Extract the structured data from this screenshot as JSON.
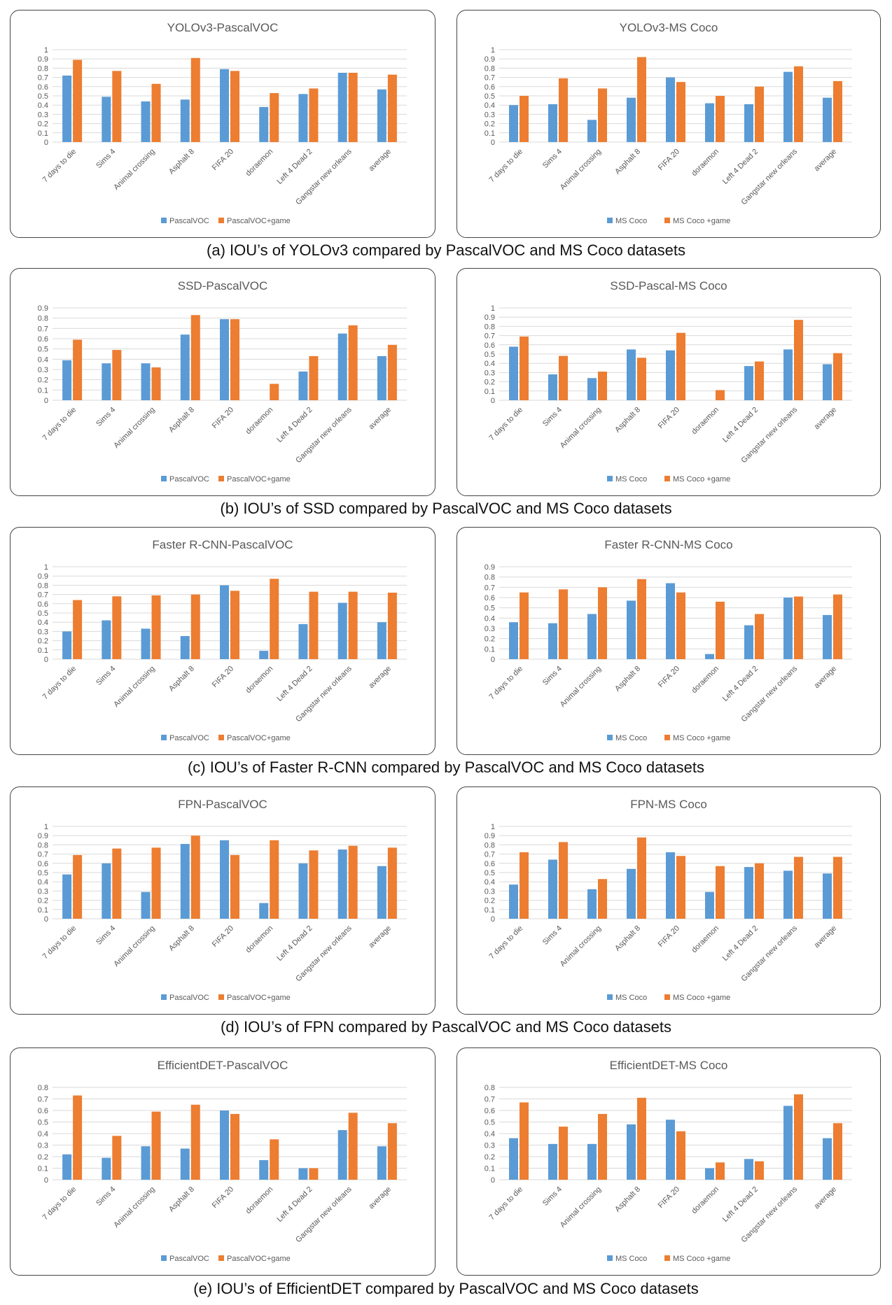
{
  "chart_data": [
    {
      "type": "bar",
      "title": "YOLOv3-PascalVOC",
      "categories": [
        "7 days to die",
        "Sims 4",
        "Animal crossing",
        "Asphalt 8",
        "FIFA 20",
        "doraemon",
        "Left 4 Dead 2",
        "Gangstar new orleans",
        "average"
      ],
      "series": [
        {
          "name": "PascalVOC",
          "values": [
            0.72,
            0.49,
            0.44,
            0.46,
            0.79,
            0.38,
            0.52,
            0.75,
            0.57
          ]
        },
        {
          "name": "PascalVOC+game",
          "values": [
            0.89,
            0.77,
            0.63,
            0.91,
            0.77,
            0.53,
            0.58,
            0.75,
            0.73
          ]
        }
      ],
      "ylim": [
        0,
        1
      ],
      "ytick_step": 0.1,
      "yticks": [
        "0",
        "0.1",
        "0.2",
        "0.3",
        "0.4",
        "0.5",
        "0.6",
        "0.7",
        "0.8",
        "0.9",
        "1"
      ],
      "xlabel": "",
      "ylabel": "",
      "legend": "bottom"
    },
    {
      "type": "bar",
      "title": "YOLOv3-MS Coco",
      "categories": [
        "7 days to die",
        "Sims 4",
        "Animal crossing",
        "Asphalt 8",
        "FIFA 20",
        "doraemon",
        "Left 4 Dead 2",
        "Gangstar new orleans",
        "average"
      ],
      "series": [
        {
          "name": "MS Coco",
          "values": [
            0.4,
            0.41,
            0.24,
            0.48,
            0.7,
            0.42,
            0.41,
            0.76,
            0.48
          ]
        },
        {
          "name": "MS Coco +game",
          "values": [
            0.5,
            0.69,
            0.58,
            0.92,
            0.65,
            0.5,
            0.6,
            0.82,
            0.66
          ]
        }
      ],
      "ylim": [
        0,
        1
      ],
      "ytick_step": 0.1,
      "yticks": [
        "0",
        "0.1",
        "0.2",
        "0.3",
        "0.4",
        "0.5",
        "0.6",
        "0.7",
        "0.8",
        "0.9",
        "1"
      ],
      "xlabel": "",
      "ylabel": "",
      "legend": "bottom"
    },
    {
      "type": "bar",
      "title": "SSD-PascalVOC",
      "categories": [
        "7 days to die",
        "Sims 4",
        "Animal crossing",
        "Asphalt 8",
        "FIFA 20",
        "doraemon",
        "Left 4 Dead 2",
        "Gangstar new orleans",
        "average"
      ],
      "series": [
        {
          "name": "PascalVOC",
          "values": [
            0.39,
            0.36,
            0.36,
            0.64,
            0.79,
            0.0,
            0.28,
            0.65,
            0.43
          ]
        },
        {
          "name": "PascalVOC+game",
          "values": [
            0.59,
            0.49,
            0.32,
            0.83,
            0.79,
            0.16,
            0.43,
            0.73,
            0.54
          ]
        }
      ],
      "ylim": [
        0,
        0.9
      ],
      "ytick_step": 0.1,
      "yticks": [
        "0",
        "0.1",
        "0.2",
        "0.3",
        "0.4",
        "0.5",
        "0.6",
        "0.7",
        "0.8",
        "0.9"
      ],
      "xlabel": "",
      "ylabel": "",
      "legend": "bottom"
    },
    {
      "type": "bar",
      "title": "SSD-Pascal-MS Coco",
      "categories": [
        "7 days to die",
        "Sims 4",
        "Animal crossing",
        "Asphalt 8",
        "FIFA 20",
        "doraemon",
        "Left 4 Dead 2",
        "Gangstar new orleans",
        "average"
      ],
      "series": [
        {
          "name": "MS Coco",
          "values": [
            0.58,
            0.28,
            0.24,
            0.55,
            0.54,
            0.0,
            0.37,
            0.55,
            0.39
          ]
        },
        {
          "name": "MS Coco +game",
          "values": [
            0.69,
            0.48,
            0.31,
            0.46,
            0.73,
            0.11,
            0.42,
            0.87,
            0.51
          ]
        }
      ],
      "ylim": [
        0,
        1
      ],
      "ytick_step": 0.1,
      "yticks": [
        "0",
        "0.1",
        "0.2",
        "0.3",
        "0.4",
        "0.5",
        "0.6",
        "0.7",
        "0.8",
        "0.9",
        "1"
      ],
      "xlabel": "",
      "ylabel": "",
      "legend": "bottom"
    },
    {
      "type": "bar",
      "title": "Faster R-CNN-PascalVOC",
      "categories": [
        "7 days to die",
        "Sims 4",
        "Animal crossing",
        "Asphalt 8",
        "FIFA 20",
        "doraemon",
        "Left 4 Dead 2",
        "Gangstar new orleans",
        "average"
      ],
      "series": [
        {
          "name": "PascalVOC",
          "values": [
            0.3,
            0.42,
            0.33,
            0.25,
            0.8,
            0.09,
            0.38,
            0.61,
            0.4
          ]
        },
        {
          "name": "PascalVOC+game",
          "values": [
            0.64,
            0.68,
            0.69,
            0.7,
            0.74,
            0.87,
            0.73,
            0.73,
            0.72
          ]
        }
      ],
      "ylim": [
        0,
        1
      ],
      "ytick_step": 0.1,
      "yticks": [
        "0",
        "0.1",
        "0.2",
        "0.3",
        "0.4",
        "0.5",
        "0.6",
        "0.7",
        "0.8",
        "0.9",
        "1"
      ],
      "xlabel": "",
      "ylabel": "",
      "legend": "bottom"
    },
    {
      "type": "bar",
      "title": "Faster R-CNN-MS Coco",
      "categories": [
        "7 days to die",
        "Sims 4",
        "Animal crossing",
        "Asphalt 8",
        "FIFA 20",
        "doraemon",
        "Left 4 Dead 2",
        "Gangstar new orleans",
        "average"
      ],
      "series": [
        {
          "name": "MS Coco",
          "values": [
            0.36,
            0.35,
            0.44,
            0.57,
            0.74,
            0.05,
            0.33,
            0.6,
            0.43
          ]
        },
        {
          "name": "MS Coco +game",
          "values": [
            0.65,
            0.68,
            0.7,
            0.78,
            0.65,
            0.56,
            0.44,
            0.61,
            0.63
          ]
        }
      ],
      "ylim": [
        0,
        0.9
      ],
      "ytick_step": 0.1,
      "yticks": [
        "0",
        "0.1",
        "0.2",
        "0.3",
        "0.4",
        "0.5",
        "0.6",
        "0.7",
        "0.8",
        "0.9"
      ],
      "xlabel": "",
      "ylabel": "",
      "legend": "bottom"
    },
    {
      "type": "bar",
      "title": "FPN-PascalVOC",
      "categories": [
        "7 days to die",
        "Sims 4",
        "Animal crossing",
        "Asphalt 8",
        "FIFA 20",
        "doraemon",
        "Left 4 Dead 2",
        "Gangstar new orleans",
        "average"
      ],
      "series": [
        {
          "name": "PascalVOC",
          "values": [
            0.48,
            0.6,
            0.29,
            0.81,
            0.85,
            0.17,
            0.6,
            0.75,
            0.57
          ]
        },
        {
          "name": "PascalVOC+game",
          "values": [
            0.69,
            0.76,
            0.77,
            0.9,
            0.69,
            0.85,
            0.74,
            0.79,
            0.77
          ]
        }
      ],
      "ylim": [
        0,
        1
      ],
      "ytick_step": 0.1,
      "yticks": [
        "0",
        "0.1",
        "0.2",
        "0.3",
        "0.4",
        "0.5",
        "0.6",
        "0.7",
        "0.8",
        "0.9",
        "1"
      ],
      "xlabel": "",
      "ylabel": "",
      "legend": "bottom"
    },
    {
      "type": "bar",
      "title": "FPN-MS Coco",
      "categories": [
        "7 days to die",
        "Sims 4",
        "Animal crossing",
        "Asphalt 8",
        "FIFA 20",
        "doraemon",
        "Left 4 Dead 2",
        "Gangstar new orleans",
        "average"
      ],
      "series": [
        {
          "name": "MS Coco",
          "values": [
            0.37,
            0.64,
            0.32,
            0.54,
            0.72,
            0.29,
            0.56,
            0.52,
            0.49
          ]
        },
        {
          "name": "MS Coco +game",
          "values": [
            0.72,
            0.83,
            0.43,
            0.88,
            0.68,
            0.57,
            0.6,
            0.67,
            0.67
          ]
        }
      ],
      "ylim": [
        0,
        1
      ],
      "ytick_step": 0.1,
      "yticks": [
        "0",
        "0.1",
        "0.2",
        "0.3",
        "0.4",
        "0.5",
        "0.6",
        "0.7",
        "0.8",
        "0.9",
        "1"
      ],
      "xlabel": "",
      "ylabel": "",
      "legend": "bottom"
    },
    {
      "type": "bar",
      "title": "EfficientDET-PascalVOC",
      "categories": [
        "7 days to die",
        "Sims 4",
        "Animal crossing",
        "Asphalt 8",
        "FIFA 20",
        "doraemon",
        "Left 4 Dead 2",
        "Gangstar new orleans",
        "average"
      ],
      "series": [
        {
          "name": "PascalVOC",
          "values": [
            0.22,
            0.19,
            0.29,
            0.27,
            0.6,
            0.17,
            0.1,
            0.43,
            0.29
          ]
        },
        {
          "name": "PascalVOC+game",
          "values": [
            0.73,
            0.38,
            0.59,
            0.65,
            0.57,
            0.35,
            0.1,
            0.58,
            0.49
          ]
        }
      ],
      "ylim": [
        0,
        0.8
      ],
      "ytick_step": 0.1,
      "yticks": [
        "0",
        "0.1",
        "0.2",
        "0.3",
        "0.4",
        "0.5",
        "0.6",
        "0.7",
        "0.8"
      ],
      "xlabel": "",
      "ylabel": "",
      "legend": "bottom"
    },
    {
      "type": "bar",
      "title": "EfficientDET-MS Coco",
      "categories": [
        "7 days to die",
        "Sims 4",
        "Animal crossing",
        "Asphalt 8",
        "FIFA 20",
        "doraemon",
        "Left 4 Dead 2",
        "Gangstar new orleans",
        "average"
      ],
      "series": [
        {
          "name": "MS Coco",
          "values": [
            0.36,
            0.31,
            0.31,
            0.48,
            0.52,
            0.1,
            0.18,
            0.64,
            0.36
          ]
        },
        {
          "name": "MS Coco +game",
          "values": [
            0.67,
            0.46,
            0.57,
            0.71,
            0.42,
            0.15,
            0.16,
            0.74,
            0.49
          ]
        }
      ],
      "ylim": [
        0,
        0.8
      ],
      "ytick_step": 0.1,
      "yticks": [
        "0",
        "0.1",
        "0.2",
        "0.3",
        "0.4",
        "0.5",
        "0.6",
        "0.7",
        "0.8"
      ],
      "xlabel": "",
      "ylabel": "",
      "legend": "bottom"
    }
  ],
  "colors": {
    "series_a": "#5b9bd5",
    "series_b": "#ed7d31",
    "grid": "#d9d9d9",
    "text": "#595959"
  },
  "captions": [
    "(a) IOU’s of YOLOv3 compared by PascalVOC and MS Coco datasets",
    "(b) IOU’s of SSD compared by PascalVOC and MS Coco datasets",
    "(c) IOU’s of Faster R-CNN compared by PascalVOC and MS Coco datasets",
    "(d) IOU’s of FPN compared by PascalVOC and MS Coco datasets",
    "(e) IOU’s of EfficientDET compared by PascalVOC and MS Coco datasets"
  ]
}
